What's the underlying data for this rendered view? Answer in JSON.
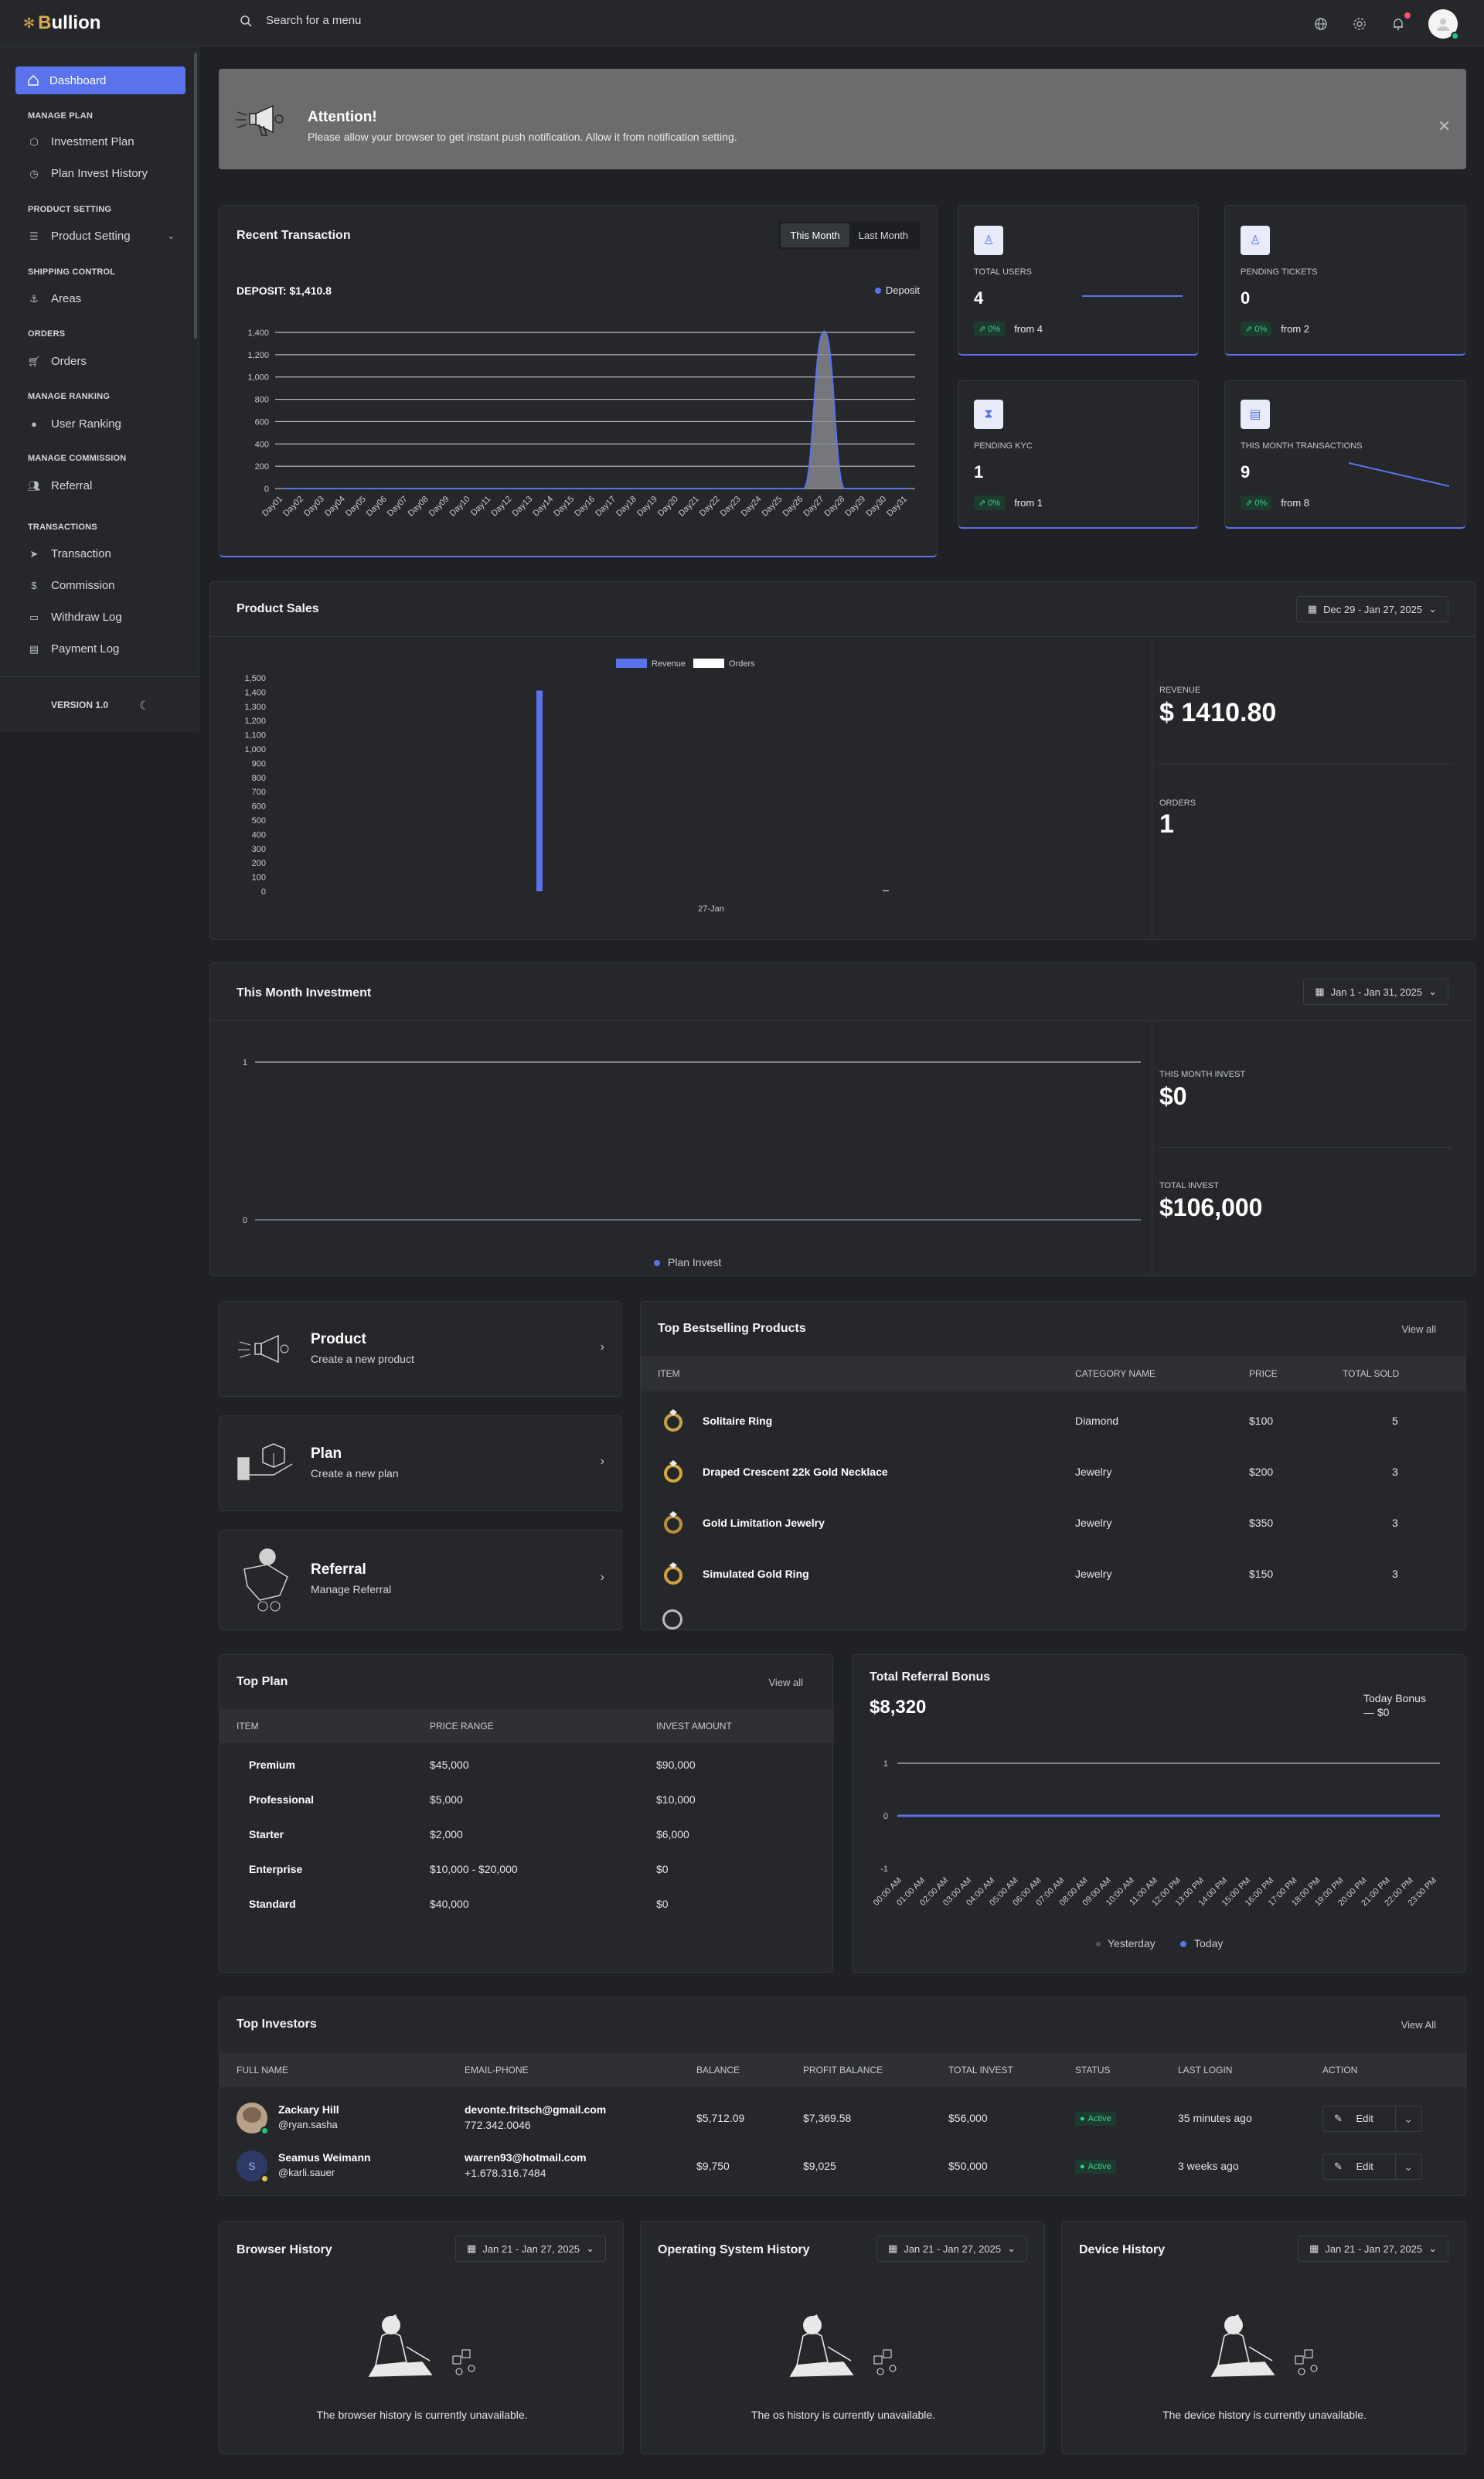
{
  "brand": {
    "name_prefix": "B",
    "name_rest": "ullion"
  },
  "search": {
    "placeholder": "Search for a menu"
  },
  "sidebar": {
    "active": "Dashboard",
    "sections": [
      {
        "head": "MANAGE PLAN",
        "items": [
          "Investment Plan",
          "Plan Invest History"
        ]
      },
      {
        "head": "PRODUCT SETTING",
        "items": [
          "Product Setting"
        ]
      },
      {
        "head": "SHIPPING CONTROL",
        "items": [
          "Areas"
        ]
      },
      {
        "head": "ORDERS",
        "items": [
          "Orders"
        ]
      },
      {
        "head": "MANAGE RANKING",
        "items": [
          "User Ranking"
        ]
      },
      {
        "head": "MANAGE COMMISSION",
        "items": [
          "Referral"
        ]
      },
      {
        "head": "TRANSACTIONS",
        "items": [
          "Transaction",
          "Commission",
          "Withdraw Log",
          "Payment Log"
        ]
      }
    ],
    "version": "VERSION 1.0"
  },
  "notice": {
    "title": "Attention!",
    "message": "Please allow your browser to get instant push notification. Allow it from notification setting."
  },
  "recent_transaction": {
    "title": "Recent Transaction",
    "tabs": [
      "This Month",
      "Last Month"
    ],
    "deposit_label": "DEPOSIT: $1,410.8",
    "legend": "Deposit"
  },
  "stats": [
    {
      "label": "TOTAL USERS",
      "value": "4",
      "pct": "0%",
      "from": "from 4"
    },
    {
      "label": "PENDING TICKETS",
      "value": "0",
      "pct": "0%",
      "from": "from 2"
    },
    {
      "label": "PENDING KYC",
      "value": "1",
      "pct": "0%",
      "from": "from 1"
    },
    {
      "label": "THIS MONTH TRANSACTIONS",
      "value": "9",
      "pct": "0%",
      "from": "from 8"
    }
  ],
  "product_sales": {
    "title": "Product Sales",
    "date": "Dec 29 - Jan 27, 2025",
    "legend": [
      "Revenue",
      "Orders"
    ],
    "revenue_label": "REVENUE",
    "revenue_value": "$ 1410.80",
    "orders_label": "ORDERS",
    "orders_value": "1",
    "x_label": "27-Jan"
  },
  "investment": {
    "title": "This Month Investment",
    "date": "Jan 1 - Jan 31, 2025",
    "legend": "Plan Invest",
    "month_label": "THIS MONTH INVEST",
    "month_value": "$0",
    "total_label": "TOTAL INVEST",
    "total_value": "$106,000"
  },
  "quick_links": [
    {
      "title": "Product",
      "sub": "Create a new product"
    },
    {
      "title": "Plan",
      "sub": "Create a new plan"
    },
    {
      "title": "Referral",
      "sub": "Manage Referral"
    }
  ],
  "bestselling": {
    "title": "Top Bestselling Products",
    "view_all": "View all",
    "headers": [
      "ITEM",
      "CATEGORY NAME",
      "PRICE",
      "TOTAL SOLD"
    ],
    "rows": [
      {
        "item": "Solitaire Ring",
        "category": "Diamond",
        "price": "$100",
        "sold": "5"
      },
      {
        "item": "Draped Crescent 22k Gold Necklace",
        "category": "Jewelry",
        "price": "$200",
        "sold": "3"
      },
      {
        "item": "Gold Limitation Jewelry",
        "category": "Jewelry",
        "price": "$350",
        "sold": "3"
      },
      {
        "item": "Simulated Gold Ring",
        "category": "Jewelry",
        "price": "$150",
        "sold": "3"
      }
    ]
  },
  "top_plan": {
    "title": "Top Plan",
    "view_all": "View all",
    "headers": [
      "ITEM",
      "PRICE RANGE",
      "INVEST AMOUNT"
    ],
    "rows": [
      {
        "item": "Premium",
        "range": "$45,000",
        "amount": "$90,000"
      },
      {
        "item": "Professional",
        "range": "$5,000",
        "amount": "$10,000"
      },
      {
        "item": "Starter",
        "range": "$2,000",
        "amount": "$6,000"
      },
      {
        "item": "Enterprise",
        "range": "$10,000 - $20,000",
        "amount": "$0"
      },
      {
        "item": "Standard",
        "range": "$40,000",
        "amount": "$0"
      }
    ]
  },
  "referral": {
    "title": "Total Referral Bonus",
    "value": "$8,320",
    "today_label": "Today Bonus",
    "today_value": "— $0",
    "legend": [
      "Yesterday",
      "Today"
    ]
  },
  "investors": {
    "title": "Top Investors",
    "view_all": "View All",
    "headers": [
      "FULL NAME",
      "EMAIL-PHONE",
      "BALANCE",
      "PROFIT BALANCE",
      "TOTAL INVEST",
      "STATUS",
      "LAST LOGIN",
      "ACTION"
    ],
    "rows": [
      {
        "name": "Zackary Hill",
        "user": "@ryan.sasha",
        "email": "devonte.fritsch@gmail.com",
        "phone": "772.342.0046",
        "balance": "$5,712.09",
        "profit": "$7,369.58",
        "invest": "$56,000",
        "status": "Active",
        "login": "35 minutes ago",
        "action": "Edit"
      },
      {
        "name": "Seamus Weimann",
        "user": "@karli.sauer",
        "initial": "S",
        "email": "warren93@hotmail.com",
        "phone": "+1.678.316.7484",
        "balance": "$9,750",
        "profit": "$9,025",
        "invest": "$50,000",
        "status": "Active",
        "login": "3 weeks ago",
        "action": "Edit"
      }
    ]
  },
  "history": [
    {
      "title": "Browser History",
      "date": "Jan 21 - Jan 27, 2025",
      "empty": "The browser history is currently unavailable."
    },
    {
      "title": "Operating System History",
      "date": "Jan 21 - Jan 27, 2025",
      "empty": "The os history is currently unavailable."
    },
    {
      "title": "Device History",
      "date": "Jan 21 - Jan 27, 2025",
      "empty": "The device history is currently unavailable."
    }
  ],
  "chart_data": [
    {
      "type": "area",
      "title": "Recent Transaction",
      "categories": [
        "Day01",
        "Day02",
        "Day03",
        "Day04",
        "Day05",
        "Day06",
        "Day07",
        "Day08",
        "Day09",
        "Day10",
        "Day11",
        "Day12",
        "Day13",
        "Day14",
        "Day15",
        "Day16",
        "Day17",
        "Day18",
        "Day19",
        "Day20",
        "Day21",
        "Day22",
        "Day23",
        "Day24",
        "Day25",
        "Day26",
        "Day27",
        "Day28",
        "Day29",
        "Day30",
        "Day31"
      ],
      "series": [
        {
          "name": "Deposit",
          "values": [
            0,
            0,
            0,
            0,
            0,
            0,
            0,
            0,
            0,
            0,
            0,
            0,
            0,
            0,
            0,
            0,
            0,
            0,
            0,
            0,
            0,
            0,
            0,
            0,
            0,
            0,
            1410.8,
            0,
            0,
            0,
            0
          ]
        }
      ],
      "yticks": [
        "0",
        "200",
        "400",
        "600",
        "800",
        "1,000",
        "1,200",
        "1,400"
      ],
      "ylim": [
        0,
        1400
      ]
    },
    {
      "type": "bar",
      "title": "Product Sales",
      "categories": [
        "27-Jan"
      ],
      "series": [
        {
          "name": "Revenue",
          "values": [
            1410.8
          ]
        },
        {
          "name": "Orders",
          "values": [
            1
          ]
        }
      ],
      "yticks": [
        "0",
        "100",
        "200",
        "300",
        "400",
        "500",
        "600",
        "700",
        "800",
        "900",
        "1,000",
        "1,100",
        "1,200",
        "1,300",
        "1,400",
        "1,500"
      ],
      "ylim": [
        0,
        1500
      ]
    },
    {
      "type": "line",
      "title": "This Month Investment",
      "series": [
        {
          "name": "Plan Invest",
          "values": [
            0
          ]
        }
      ],
      "yticks": [
        "0",
        "1"
      ],
      "ylim": [
        0,
        1
      ]
    },
    {
      "type": "line",
      "title": "Total Referral Bonus",
      "categories": [
        "00:00 AM",
        "01:00 AM",
        "02:00 AM",
        "03:00 AM",
        "04:00 AM",
        "05:00 AM",
        "06:00 AM",
        "07:00 AM",
        "08:00 AM",
        "09:00 AM",
        "10:00 AM",
        "11:00 AM",
        "12:00 PM",
        "13:00 PM",
        "14:00 PM",
        "15:00 PM",
        "16:00 PM",
        "17:00 PM",
        "18:00 PM",
        "19:00 PM",
        "20:00 PM",
        "21:00 PM",
        "22:00 PM",
        "23:00 PM"
      ],
      "series": [
        {
          "name": "Yesterday",
          "values": [
            0,
            0,
            0,
            0,
            0,
            0,
            0,
            0,
            0,
            0,
            0,
            0,
            0,
            0,
            0,
            0,
            0,
            0,
            0,
            0,
            0,
            0,
            0,
            0
          ]
        },
        {
          "name": "Today",
          "values": [
            0,
            0,
            0,
            0,
            0,
            0,
            0,
            0,
            0,
            0,
            0,
            0,
            0,
            0,
            0,
            0,
            0,
            0,
            0,
            0,
            0,
            0,
            0,
            0
          ]
        }
      ],
      "yticks": [
        "-1",
        "0",
        "1"
      ],
      "ylim": [
        -1,
        1
      ]
    }
  ],
  "colors": {
    "accent": "#5a72ec",
    "success": "#3ad18a",
    "bg": "#1f2125",
    "card": "#25272b"
  }
}
